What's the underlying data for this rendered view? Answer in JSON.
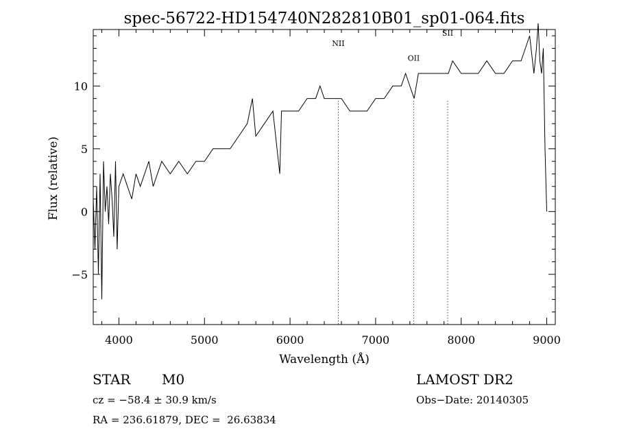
{
  "chart_data": {
    "type": "line",
    "title": "spec-56722-HD154740N282810B01_sp01-064.fits",
    "xlabel": "Wavelength (Å)",
    "ylabel": "Flux (relative)",
    "xlim": [
      3700,
      9100
    ],
    "ylim": [
      -9,
      14.5
    ],
    "xticks": [
      4000,
      5000,
      6000,
      7000,
      8000,
      9000
    ],
    "yticks": [
      -5,
      0,
      5,
      10
    ],
    "grid": false,
    "line_color": "#000000",
    "series": [
      {
        "x": [
          3700,
          3720,
          3740,
          3760,
          3780,
          3800,
          3820,
          3840,
          3860,
          3880,
          3900,
          3920,
          3940,
          3960,
          3980,
          4000,
          4050,
          4100,
          4150,
          4200,
          4250,
          4300,
          4350,
          4400,
          4500,
          4600,
          4700,
          4800,
          4900,
          5000,
          5100,
          5200,
          5300,
          5400,
          5500,
          5560,
          5600,
          5700,
          5800,
          5880,
          5900,
          6000,
          6100,
          6200,
          6300,
          6350,
          6400,
          6500,
          6560,
          6600,
          6700,
          6800,
          6900,
          7000,
          7100,
          7200,
          7300,
          7350,
          7400,
          7450,
          7500,
          7600,
          7700,
          7800,
          7850,
          7900,
          8000,
          8100,
          8200,
          8300,
          8400,
          8500,
          8600,
          8700,
          8800,
          8850,
          8880,
          8900,
          8920,
          8940,
          8960,
          8980,
          9000
        ],
        "values": [
          1,
          -3,
          2,
          -5,
          3,
          -7,
          4,
          0,
          2,
          -1,
          3,
          1,
          -2,
          4,
          -3,
          2,
          3,
          2,
          1,
          3,
          2,
          3,
          4,
          2,
          4,
          3,
          4,
          3,
          4,
          4,
          5,
          5,
          5,
          6,
          7,
          9,
          6,
          7,
          8,
          3,
          8,
          8,
          8,
          9,
          9,
          10,
          9,
          9,
          9,
          9,
          8,
          8,
          8,
          9,
          9,
          10,
          10,
          11,
          10,
          9,
          11,
          11,
          11,
          11,
          11,
          12,
          11,
          11,
          11,
          12,
          11,
          11,
          12,
          12,
          14,
          11,
          13,
          15,
          12,
          11,
          13,
          5,
          0
        ]
      }
    ],
    "annotations": [
      {
        "label": "NII",
        "x": 6564
      },
      {
        "label": "OII",
        "x": 7445
      },
      {
        "label": "SII",
        "x": 7842
      }
    ]
  },
  "info": {
    "obj_class": "STAR",
    "subclass": "M0",
    "survey": "LAMOST DR2",
    "cz": "cz = −58.4 ± 30.9 km/s",
    "obs_date": "Obs−Date: 20140305",
    "coords": "RA = 236.61879, DEC =  26.63834"
  }
}
